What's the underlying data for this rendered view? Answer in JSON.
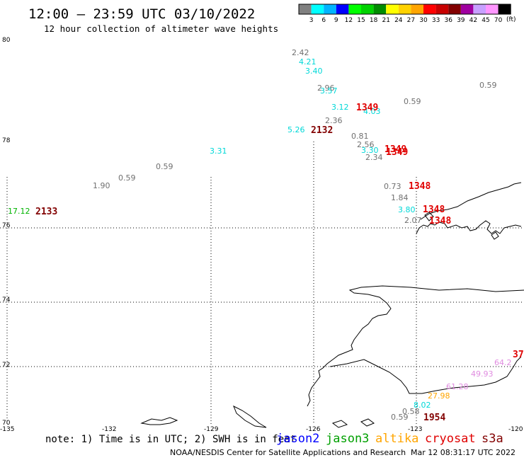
{
  "title": "12:00 – 23:59 UTC 03/10/2022",
  "subtitle": "12 hour collection of altimeter wave heights",
  "colorbar": {
    "unit": "(ft)",
    "colors": [
      "#808080",
      "#00ffff",
      "#00b4ff",
      "#0000ff",
      "#00ff00",
      "#00d200",
      "#008c00",
      "#ffff00",
      "#ffd200",
      "#ffa500",
      "#ff0000",
      "#c80000",
      "#820000",
      "#a000a0",
      "#c8a0ff",
      "#ff96ff",
      "#000000"
    ],
    "labels": [
      "3",
      "6",
      "9",
      "12",
      "15",
      "18",
      "21",
      "24",
      "27",
      "30",
      "33",
      "36",
      "39",
      "42",
      "45",
      "70"
    ]
  },
  "lat_labels": [
    "80",
    "78",
    "76",
    "74",
    "72",
    "70"
  ],
  "lon_labels": [
    "-135",
    "-132",
    "-129",
    "-126",
    "-123",
    "-120"
  ],
  "observations": [
    {
      "text": "2.42",
      "color": "#707070"
    },
    {
      "text": "4.21",
      "color": "#00d8d8"
    },
    {
      "text": "3.40",
      "color": "#00d8d8"
    },
    {
      "text": "2.96",
      "color": "#707070"
    },
    {
      "text": "3.57",
      "color": "#00d8d8"
    },
    {
      "text": "0.59",
      "color": "#707070"
    },
    {
      "text": "3.12",
      "color": "#00d8d8"
    },
    {
      "text": "4.03",
      "color": "#00d8d8"
    },
    {
      "text": "0.59",
      "color": "#707070"
    },
    {
      "text": "2.36",
      "color": "#707070"
    },
    {
      "text": "5.26",
      "color": "#00d8d8"
    },
    {
      "text": "0.81",
      "color": "#707070"
    },
    {
      "text": "2.56",
      "color": "#707070"
    },
    {
      "text": "3.31",
      "color": "#00d8d8"
    },
    {
      "text": "3.30",
      "color": "#00d8d8"
    },
    {
      "text": "2.34",
      "color": "#707070"
    },
    {
      "text": "0.59",
      "color": "#707070"
    },
    {
      "text": "0.59",
      "color": "#707070"
    },
    {
      "text": "1.90",
      "color": "#707070"
    },
    {
      "text": "0.73",
      "color": "#707070"
    },
    {
      "text": "1.84",
      "color": "#707070"
    },
    {
      "text": "17.12",
      "color": "#00b400"
    },
    {
      "text": "3.80",
      "color": "#00d8d8"
    },
    {
      "text": "2.07",
      "color": "#707070"
    },
    {
      "text": "64.2",
      "color": "#e08ce0"
    },
    {
      "text": "49.93",
      "color": "#e08ce0"
    },
    {
      "text": "61.28",
      "color": "#e08ce0"
    },
    {
      "text": "27.98",
      "color": "#ffa500"
    },
    {
      "text": "8.02",
      "color": "#00d8d8"
    },
    {
      "text": "0.58",
      "color": "#707070"
    },
    {
      "text": "0.59",
      "color": "#707070"
    }
  ],
  "pass_labels": [
    {
      "text": "1349",
      "color": "#e00000"
    },
    {
      "text": "2132",
      "color": "#820000"
    },
    {
      "text": "1349",
      "color": "#e00000"
    },
    {
      "text": "1349",
      "color": "#e00000"
    },
    {
      "text": "1348",
      "color": "#e00000"
    },
    {
      "text": "2133",
      "color": "#820000"
    },
    {
      "text": "1348",
      "color": "#e00000"
    },
    {
      "text": "1348",
      "color": "#e00000"
    },
    {
      "text": "1954",
      "color": "#820000"
    },
    {
      "text": "37",
      "color": "#e00000"
    }
  ],
  "note": "note: 1) Time is in UTC; 2) SWH is in feet",
  "satellites": [
    {
      "name": "jason2",
      "color": "#0000ff"
    },
    {
      "name": "jason3",
      "color": "#00a000"
    },
    {
      "name": "altika",
      "color": "#ffa500"
    },
    {
      "name": "cryosat",
      "color": "#e00000"
    },
    {
      "name": "s3a",
      "color": "#820000"
    }
  ],
  "footer_left": "NOAA/NESDIS Center for Satellite Applications and Research",
  "footer_right": "Mar 12 08:31:17 UTC 2022"
}
